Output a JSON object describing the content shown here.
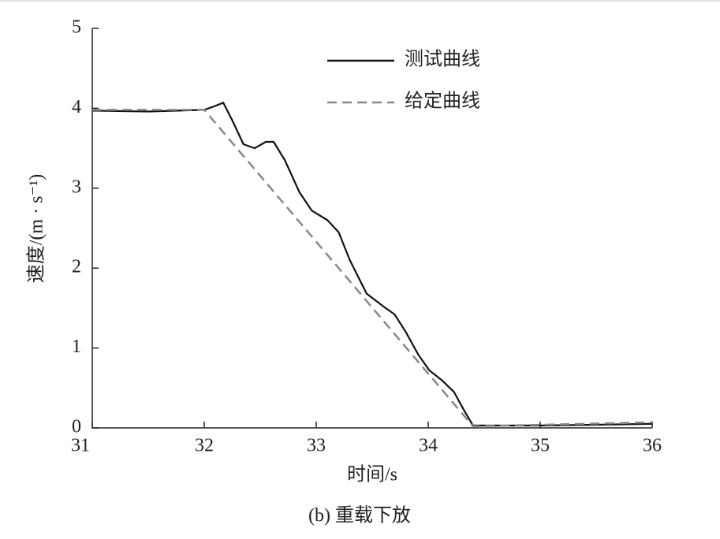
{
  "chart_data": {
    "type": "line",
    "x_label": "时间/s",
    "y_label": "速度/(m · s⁻¹)",
    "caption": "(b) 重载下放",
    "xlim": [
      31,
      36
    ],
    "xticks": [
      31,
      32,
      33,
      34,
      35,
      36
    ],
    "ylim": [
      0,
      5
    ],
    "yticks": [
      0,
      1,
      2,
      3,
      4,
      5
    ],
    "series": [
      {
        "name": "测试曲线",
        "color": "#111111",
        "dash": false,
        "x": [
          31.0,
          31.5,
          32.0,
          32.1,
          32.17,
          32.25,
          32.35,
          32.45,
          32.55,
          32.62,
          32.72,
          32.85,
          32.96,
          33.1,
          33.2,
          33.3,
          33.45,
          33.6,
          33.7,
          33.8,
          33.91,
          34.01,
          34.12,
          34.23,
          34.32,
          34.4,
          35.0,
          36.0
        ],
        "values": [
          3.97,
          3.96,
          3.98,
          4.03,
          4.07,
          3.85,
          3.55,
          3.5,
          3.58,
          3.58,
          3.35,
          2.95,
          2.72,
          2.6,
          2.45,
          2.1,
          1.68,
          1.52,
          1.42,
          1.2,
          0.92,
          0.72,
          0.6,
          0.45,
          0.22,
          0.03,
          0.03,
          0.05
        ]
      },
      {
        "name": "给定曲线",
        "color": "#888888",
        "dash": true,
        "x": [
          31.0,
          32.0,
          34.4,
          36.0
        ],
        "values": [
          3.98,
          3.98,
          0.02,
          0.07
        ]
      }
    ]
  }
}
